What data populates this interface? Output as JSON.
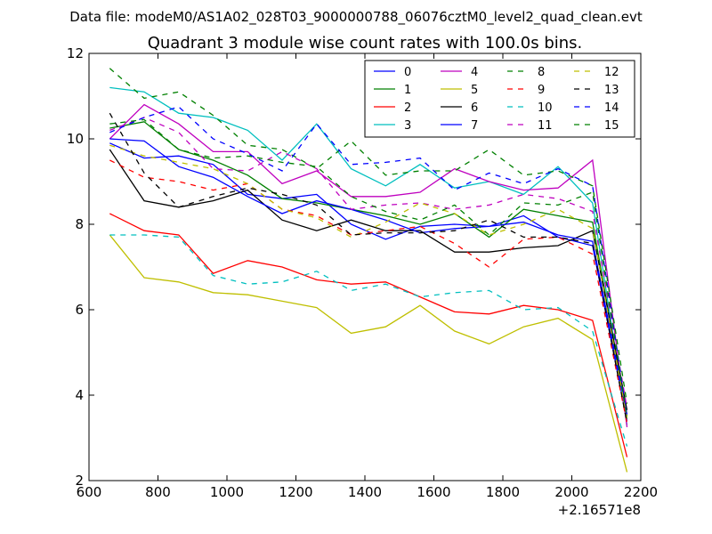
{
  "chart_data": {
    "type": "line",
    "suptitle": "Data file: modeM0/AS1A02_028T03_9000000788_06076cztM0_level2_quad_clean.evt",
    "title": "Quadrant 3 module wise count rates with 100.0s bins.",
    "xlabel": "",
    "ylabel": "",
    "x_offset_label": "+2.16571e8",
    "xlim": [
      600,
      2200
    ],
    "ylim": [
      2,
      12
    ],
    "xticks": [
      "600",
      "800",
      "1000",
      "1200",
      "1400",
      "1600",
      "1800",
      "2000",
      "2200"
    ],
    "yticks": [
      "2",
      "4",
      "6",
      "8",
      "10",
      "12"
    ],
    "grid": false,
    "legend_position": "top-right",
    "x": [
      660,
      760,
      860,
      960,
      1060,
      1160,
      1260,
      1360,
      1460,
      1560,
      1660,
      1760,
      1860,
      1960,
      2060,
      2160
    ],
    "series": [
      {
        "name": "0",
        "color": "#0000ff",
        "dash": "solid",
        "values": [
          9.9,
          9.55,
          9.6,
          9.4,
          8.7,
          8.6,
          8.7,
          8.0,
          7.65,
          7.95,
          8.0,
          7.95,
          8.2,
          7.7,
          7.5,
          3.4
        ]
      },
      {
        "name": "1",
        "color": "#008000",
        "dash": "solid",
        "values": [
          10.25,
          10.4,
          9.75,
          9.5,
          9.15,
          8.6,
          8.5,
          8.35,
          8.2,
          8.0,
          8.25,
          7.7,
          8.35,
          8.2,
          8.05,
          3.5
        ]
      },
      {
        "name": "2",
        "color": "#ff0000",
        "dash": "solid",
        "values": [
          8.25,
          7.85,
          7.75,
          6.85,
          7.15,
          7.0,
          6.7,
          6.6,
          6.65,
          6.3,
          5.95,
          5.9,
          6.1,
          6.0,
          5.75,
          2.55
        ]
      },
      {
        "name": "3",
        "color": "#00bfbf",
        "dash": "solid",
        "values": [
          11.2,
          11.1,
          10.6,
          10.5,
          10.2,
          9.5,
          10.35,
          9.3,
          8.9,
          9.4,
          8.85,
          9.0,
          8.7,
          9.35,
          8.5,
          3.3
        ]
      },
      {
        "name": "4",
        "color": "#bf00bf",
        "dash": "solid",
        "values": [
          10.0,
          10.8,
          10.35,
          9.7,
          9.7,
          8.95,
          9.25,
          8.65,
          8.65,
          8.75,
          9.3,
          9.0,
          8.8,
          8.85,
          9.5,
          3.25
        ]
      },
      {
        "name": "5",
        "color": "#bfbf00",
        "dash": "solid",
        "values": [
          7.75,
          6.75,
          6.65,
          6.4,
          6.35,
          6.2,
          6.05,
          5.45,
          5.6,
          6.1,
          5.5,
          5.2,
          5.6,
          5.8,
          5.3,
          2.2
        ]
      },
      {
        "name": "6",
        "color": "#000000",
        "dash": "solid",
        "values": [
          9.75,
          8.55,
          8.4,
          8.55,
          8.8,
          8.1,
          7.85,
          8.1,
          7.85,
          7.85,
          7.35,
          7.35,
          7.45,
          7.5,
          7.85,
          3.65
        ]
      },
      {
        "name": "7",
        "color": "#0000ff",
        "dash": "solid",
        "values": [
          10.0,
          9.95,
          9.35,
          9.1,
          8.65,
          8.25,
          8.55,
          8.35,
          8.1,
          7.8,
          7.9,
          7.95,
          8.05,
          7.75,
          7.6,
          3.55
        ]
      },
      {
        "name": "8",
        "color": "#008000",
        "dash": "dashed",
        "values": [
          11.65,
          10.95,
          11.1,
          10.55,
          9.85,
          9.75,
          9.3,
          9.95,
          9.15,
          9.25,
          9.25,
          9.75,
          9.15,
          9.25,
          8.9,
          3.8
        ]
      },
      {
        "name": "9",
        "color": "#ff0000",
        "dash": "dashed",
        "values": [
          9.5,
          9.1,
          9.0,
          8.8,
          8.95,
          8.35,
          8.2,
          7.75,
          7.85,
          7.95,
          7.55,
          7.0,
          7.65,
          7.7,
          7.3,
          3.35
        ]
      },
      {
        "name": "10",
        "color": "#00bfbf",
        "dash": "dashed",
        "values": [
          7.75,
          7.75,
          7.7,
          6.8,
          6.6,
          6.65,
          6.9,
          6.45,
          6.6,
          6.3,
          6.4,
          6.45,
          6.0,
          6.05,
          5.5,
          2.8
        ]
      },
      {
        "name": "11",
        "color": "#bf00bf",
        "dash": "dashed",
        "values": [
          10.2,
          10.5,
          10.15,
          9.3,
          9.25,
          9.7,
          9.3,
          8.35,
          8.45,
          8.5,
          8.35,
          8.45,
          8.7,
          8.6,
          8.3,
          3.7
        ]
      },
      {
        "name": "12",
        "color": "#bfbf00",
        "dash": "dashed",
        "values": [
          9.85,
          9.6,
          9.45,
          9.3,
          8.95,
          8.35,
          8.15,
          7.7,
          8.05,
          8.5,
          8.25,
          7.75,
          8.0,
          8.35,
          7.9,
          3.45
        ]
      },
      {
        "name": "13",
        "color": "#000000",
        "dash": "dashed",
        "values": [
          10.6,
          9.2,
          8.4,
          8.65,
          8.85,
          8.7,
          8.45,
          7.75,
          7.8,
          7.8,
          7.85,
          8.1,
          7.7,
          7.7,
          7.55,
          3.35
        ]
      },
      {
        "name": "14",
        "color": "#0000ff",
        "dash": "dashed",
        "values": [
          10.15,
          10.5,
          10.75,
          10.0,
          9.65,
          9.25,
          10.35,
          9.4,
          9.45,
          9.55,
          8.8,
          9.2,
          8.95,
          9.3,
          8.9,
          3.5
        ]
      },
      {
        "name": "15",
        "color": "#008000",
        "dash": "dashed",
        "values": [
          10.35,
          10.45,
          9.75,
          9.55,
          9.6,
          9.45,
          9.35,
          8.65,
          8.3,
          8.1,
          8.45,
          7.75,
          8.5,
          8.45,
          8.75,
          3.45
        ]
      }
    ]
  }
}
